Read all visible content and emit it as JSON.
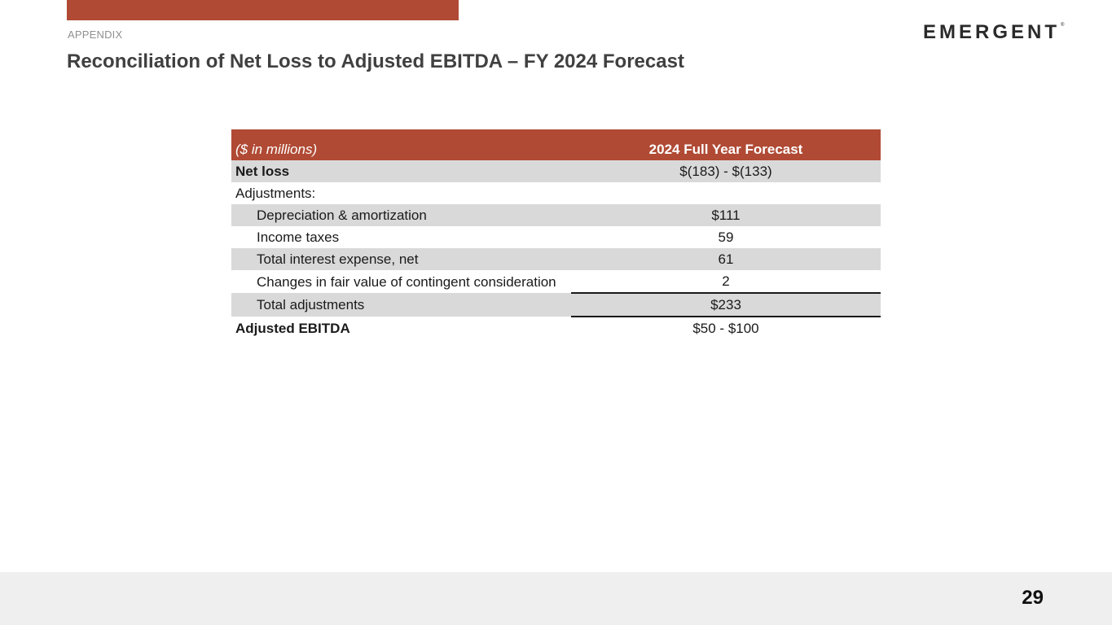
{
  "header": {
    "section_label": "APPENDIX",
    "title": "Reconciliation of Net Loss to Adjusted EBITDA – FY 2024 Forecast",
    "logo_text": "EMERGENT",
    "logo_mark": "®"
  },
  "table": {
    "header_label": "($ in millions)",
    "header_value": "2024 Full Year Forecast",
    "net_loss_label": "Net loss",
    "net_loss_value": "$(183) - $(133)",
    "adjustments_label": "Adjustments:",
    "dep_label": "Depreciation & amortization",
    "dep_value": "$111",
    "tax_label": "Income taxes",
    "tax_value": "59",
    "interest_label": "Total interest expense, net",
    "interest_value": "61",
    "fair_value_label": "Changes in fair value of contingent consideration",
    "fair_value_value": "2",
    "total_adj_label": "Total adjustments",
    "total_adj_value": "$233",
    "ebitda_label": "Adjusted EBITDA",
    "ebitda_value": "$50 - $100"
  },
  "footer": {
    "page_number": "29"
  },
  "colors": {
    "accent": "#b04a34",
    "row_shade": "#d9d9d9",
    "footer_bg": "#efefef",
    "title_text": "#404040"
  }
}
